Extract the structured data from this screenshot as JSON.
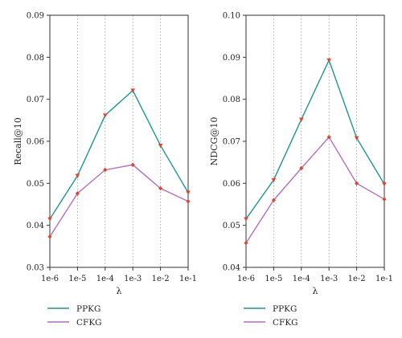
{
  "chart_data": [
    {
      "type": "line",
      "title": "",
      "xlabel": "λ",
      "ylabel": "Recall@10",
      "categories": [
        "1e-6",
        "1e-5",
        "1e-4",
        "1e-3",
        "1e-2",
        "1e-1"
      ],
      "ylim": [
        0.03,
        0.09
      ],
      "yticks": [
        "0.03",
        "0.04",
        "0.05",
        "0.06",
        "0.07",
        "0.08",
        "0.09"
      ],
      "grid": "dotted vertical lines at x ticks",
      "legend_position": "below plot",
      "series": [
        {
          "name": "PPKG",
          "color": "#20958f",
          "values": [
            0.0415,
            0.0518,
            0.0662,
            0.0721,
            0.059,
            0.0478
          ]
        },
        {
          "name": "CFKG",
          "color": "#b56cc4",
          "values": [
            0.0373,
            0.0476,
            0.0532,
            0.0544,
            0.0488,
            0.0457
          ]
        }
      ],
      "marker_color": "#e0462a"
    },
    {
      "type": "line",
      "title": "",
      "xlabel": "λ",
      "ylabel": "NDCG@10",
      "categories": [
        "1e-6",
        "1e-5",
        "1e-4",
        "1e-3",
        "1e-2",
        "1e-1"
      ],
      "ylim": [
        0.04,
        0.1
      ],
      "yticks": [
        "0.04",
        "0.05",
        "0.06",
        "0.07",
        "0.08",
        "0.09",
        "0.10"
      ],
      "grid": "dotted vertical lines at x ticks",
      "legend_position": "below plot",
      "series": [
        {
          "name": "PPKG",
          "color": "#20958f",
          "values": [
            0.0515,
            0.0608,
            0.0752,
            0.0893,
            0.0708,
            0.0598
          ]
        },
        {
          "name": "CFKG",
          "color": "#b56cc4",
          "values": [
            0.0458,
            0.056,
            0.0636,
            0.071,
            0.06,
            0.0562
          ]
        }
      ],
      "marker_color": "#e0462a"
    }
  ]
}
